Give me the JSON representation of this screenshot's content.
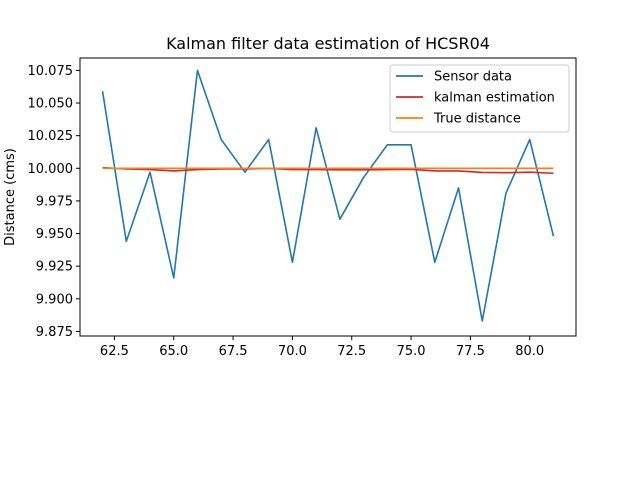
{
  "chart_data": {
    "type": "line",
    "title": "Kalman filter data estimation of HCSR04",
    "xlabel": "",
    "ylabel": "Distance (cms)",
    "xlim": [
      61.05,
      81.95
    ],
    "ylim": [
      9.8715,
      10.0845
    ],
    "xticks": [
      62.5,
      65.0,
      67.5,
      70.0,
      72.5,
      75.0,
      77.5,
      80.0
    ],
    "xtick_labels": [
      "62.5",
      "65.0",
      "67.5",
      "70.0",
      "72.5",
      "75.0",
      "77.5",
      "80.0"
    ],
    "yticks": [
      9.875,
      9.9,
      9.925,
      9.95,
      9.975,
      10.0,
      10.025,
      10.05,
      10.075
    ],
    "ytick_labels": [
      "9.875",
      "9.900",
      "9.925",
      "9.950",
      "9.975",
      "10.000",
      "10.025",
      "10.050",
      "10.075"
    ],
    "grid": false,
    "legend_position": "top-right",
    "x": [
      62,
      63,
      64,
      65,
      66,
      67,
      68,
      69,
      70,
      71,
      72,
      73,
      74,
      75,
      76,
      77,
      78,
      79,
      80,
      81
    ],
    "series": [
      {
        "name": "Sensor data",
        "color": "#1f77b4",
        "values": [
          10.059,
          9.944,
          9.997,
          9.916,
          10.075,
          10.022,
          9.997,
          10.022,
          9.928,
          10.031,
          9.961,
          9.993,
          10.018,
          10.018,
          9.928,
          9.985,
          9.883,
          9.981,
          10.022,
          9.948
        ]
      },
      {
        "name": "kalman estimation",
        "color": "#d62728",
        "values": [
          10.0005,
          9.9995,
          9.999,
          9.998,
          9.999,
          9.9995,
          9.9995,
          10.0,
          9.999,
          9.999,
          9.9988,
          9.9988,
          9.999,
          9.9992,
          9.998,
          9.998,
          9.9968,
          9.9966,
          9.997,
          9.9962
        ]
      },
      {
        "name": "True distance",
        "color": "#ff7f0e",
        "values": [
          10.0,
          10.0,
          10.0,
          10.0,
          10.0,
          10.0,
          10.0,
          10.0,
          10.0,
          10.0,
          10.0,
          10.0,
          10.0,
          10.0,
          10.0,
          10.0,
          10.0,
          10.0,
          10.0,
          10.0
        ]
      }
    ]
  }
}
